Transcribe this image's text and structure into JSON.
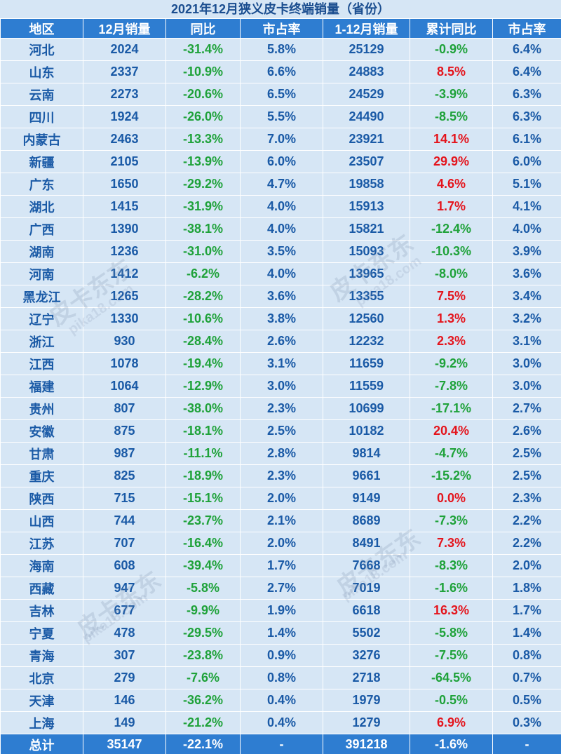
{
  "title": "2021年12月狭义皮卡终端销量（省份）",
  "headers": [
    "地区",
    "12月销量",
    "同比",
    "市占率",
    "1-12月销量",
    "累计同比",
    "市占率"
  ],
  "rows": [
    {
      "region": "河北",
      "dec": "2024",
      "yoy": "-31.4%",
      "share": "5.8%",
      "ytd": "25129",
      "ytd_yoy": "-0.9%",
      "ytd_share": "6.4%"
    },
    {
      "region": "山东",
      "dec": "2337",
      "yoy": "-10.9%",
      "share": "6.6%",
      "ytd": "24883",
      "ytd_yoy": "8.5%",
      "ytd_share": "6.4%"
    },
    {
      "region": "云南",
      "dec": "2273",
      "yoy": "-20.6%",
      "share": "6.5%",
      "ytd": "24529",
      "ytd_yoy": "-3.9%",
      "ytd_share": "6.3%"
    },
    {
      "region": "四川",
      "dec": "1924",
      "yoy": "-26.0%",
      "share": "5.5%",
      "ytd": "24490",
      "ytd_yoy": "-8.5%",
      "ytd_share": "6.3%"
    },
    {
      "region": "内蒙古",
      "dec": "2463",
      "yoy": "-13.3%",
      "share": "7.0%",
      "ytd": "23921",
      "ytd_yoy": "14.1%",
      "ytd_share": "6.1%"
    },
    {
      "region": "新疆",
      "dec": "2105",
      "yoy": "-13.9%",
      "share": "6.0%",
      "ytd": "23507",
      "ytd_yoy": "29.9%",
      "ytd_share": "6.0%"
    },
    {
      "region": "广东",
      "dec": "1650",
      "yoy": "-29.2%",
      "share": "4.7%",
      "ytd": "19858",
      "ytd_yoy": "4.6%",
      "ytd_share": "5.1%"
    },
    {
      "region": "湖北",
      "dec": "1415",
      "yoy": "-31.9%",
      "share": "4.0%",
      "ytd": "15913",
      "ytd_yoy": "1.7%",
      "ytd_share": "4.1%"
    },
    {
      "region": "广西",
      "dec": "1390",
      "yoy": "-38.1%",
      "share": "4.0%",
      "ytd": "15821",
      "ytd_yoy": "-12.4%",
      "ytd_share": "4.0%"
    },
    {
      "region": "湖南",
      "dec": "1236",
      "yoy": "-31.0%",
      "share": "3.5%",
      "ytd": "15093",
      "ytd_yoy": "-10.3%",
      "ytd_share": "3.9%"
    },
    {
      "region": "河南",
      "dec": "1412",
      "yoy": "-6.2%",
      "share": "4.0%",
      "ytd": "13965",
      "ytd_yoy": "-8.0%",
      "ytd_share": "3.6%"
    },
    {
      "region": "黑龙江",
      "dec": "1265",
      "yoy": "-28.2%",
      "share": "3.6%",
      "ytd": "13355",
      "ytd_yoy": "7.5%",
      "ytd_share": "3.4%"
    },
    {
      "region": "辽宁",
      "dec": "1330",
      "yoy": "-10.6%",
      "share": "3.8%",
      "ytd": "12560",
      "ytd_yoy": "1.3%",
      "ytd_share": "3.2%"
    },
    {
      "region": "浙江",
      "dec": "930",
      "yoy": "-28.4%",
      "share": "2.6%",
      "ytd": "12232",
      "ytd_yoy": "2.3%",
      "ytd_share": "3.1%"
    },
    {
      "region": "江西",
      "dec": "1078",
      "yoy": "-19.4%",
      "share": "3.1%",
      "ytd": "11659",
      "ytd_yoy": "-9.2%",
      "ytd_share": "3.0%"
    },
    {
      "region": "福建",
      "dec": "1064",
      "yoy": "-12.9%",
      "share": "3.0%",
      "ytd": "11559",
      "ytd_yoy": "-7.8%",
      "ytd_share": "3.0%"
    },
    {
      "region": "贵州",
      "dec": "807",
      "yoy": "-38.0%",
      "share": "2.3%",
      "ytd": "10699",
      "ytd_yoy": "-17.1%",
      "ytd_share": "2.7%"
    },
    {
      "region": "安徽",
      "dec": "875",
      "yoy": "-18.1%",
      "share": "2.5%",
      "ytd": "10182",
      "ytd_yoy": "20.4%",
      "ytd_share": "2.6%"
    },
    {
      "region": "甘肃",
      "dec": "987",
      "yoy": "-11.1%",
      "share": "2.8%",
      "ytd": "9814",
      "ytd_yoy": "-4.7%",
      "ytd_share": "2.5%"
    },
    {
      "region": "重庆",
      "dec": "825",
      "yoy": "-18.9%",
      "share": "2.3%",
      "ytd": "9661",
      "ytd_yoy": "-15.2%",
      "ytd_share": "2.5%"
    },
    {
      "region": "陕西",
      "dec": "715",
      "yoy": "-15.1%",
      "share": "2.0%",
      "ytd": "9149",
      "ytd_yoy": "0.0%",
      "ytd_share": "2.3%"
    },
    {
      "region": "山西",
      "dec": "744",
      "yoy": "-23.7%",
      "share": "2.1%",
      "ytd": "8689",
      "ytd_yoy": "-7.3%",
      "ytd_share": "2.2%"
    },
    {
      "region": "江苏",
      "dec": "707",
      "yoy": "-16.4%",
      "share": "2.0%",
      "ytd": "8491",
      "ytd_yoy": "7.3%",
      "ytd_share": "2.2%"
    },
    {
      "region": "海南",
      "dec": "608",
      "yoy": "-39.4%",
      "share": "1.7%",
      "ytd": "7668",
      "ytd_yoy": "-8.3%",
      "ytd_share": "2.0%"
    },
    {
      "region": "西藏",
      "dec": "947",
      "yoy": "-5.8%",
      "share": "2.7%",
      "ytd": "7019",
      "ytd_yoy": "-1.6%",
      "ytd_share": "1.8%"
    },
    {
      "region": "吉林",
      "dec": "677",
      "yoy": "-9.9%",
      "share": "1.9%",
      "ytd": "6618",
      "ytd_yoy": "16.3%",
      "ytd_share": "1.7%"
    },
    {
      "region": "宁夏",
      "dec": "478",
      "yoy": "-29.5%",
      "share": "1.4%",
      "ytd": "5502",
      "ytd_yoy": "-5.8%",
      "ytd_share": "1.4%"
    },
    {
      "region": "青海",
      "dec": "307",
      "yoy": "-23.8%",
      "share": "0.9%",
      "ytd": "3276",
      "ytd_yoy": "-7.5%",
      "ytd_share": "0.8%"
    },
    {
      "region": "北京",
      "dec": "279",
      "yoy": "-7.6%",
      "share": "0.8%",
      "ytd": "2718",
      "ytd_yoy": "-64.5%",
      "ytd_share": "0.7%"
    },
    {
      "region": "天津",
      "dec": "146",
      "yoy": "-36.2%",
      "share": "0.4%",
      "ytd": "1979",
      "ytd_yoy": "-0.5%",
      "ytd_share": "0.5%"
    },
    {
      "region": "上海",
      "dec": "149",
      "yoy": "-21.2%",
      "share": "0.4%",
      "ytd": "1279",
      "ytd_yoy": "6.9%",
      "ytd_share": "0.3%"
    }
  ],
  "total": {
    "region": "总计",
    "dec": "35147",
    "yoy": "-22.1%",
    "share": "-",
    "ytd": "391218",
    "ytd_yoy": "-1.6%",
    "ytd_share": "-"
  },
  "watermark": {
    "brand": "皮卡东东",
    "url": "pika18.com"
  },
  "colors": {
    "header_bg": "#2e7dd1",
    "body_bg": "#d6e6f5",
    "text_blue": "#1a5aa6",
    "negative_green": "#1fa23a",
    "positive_red": "#e4141c"
  }
}
